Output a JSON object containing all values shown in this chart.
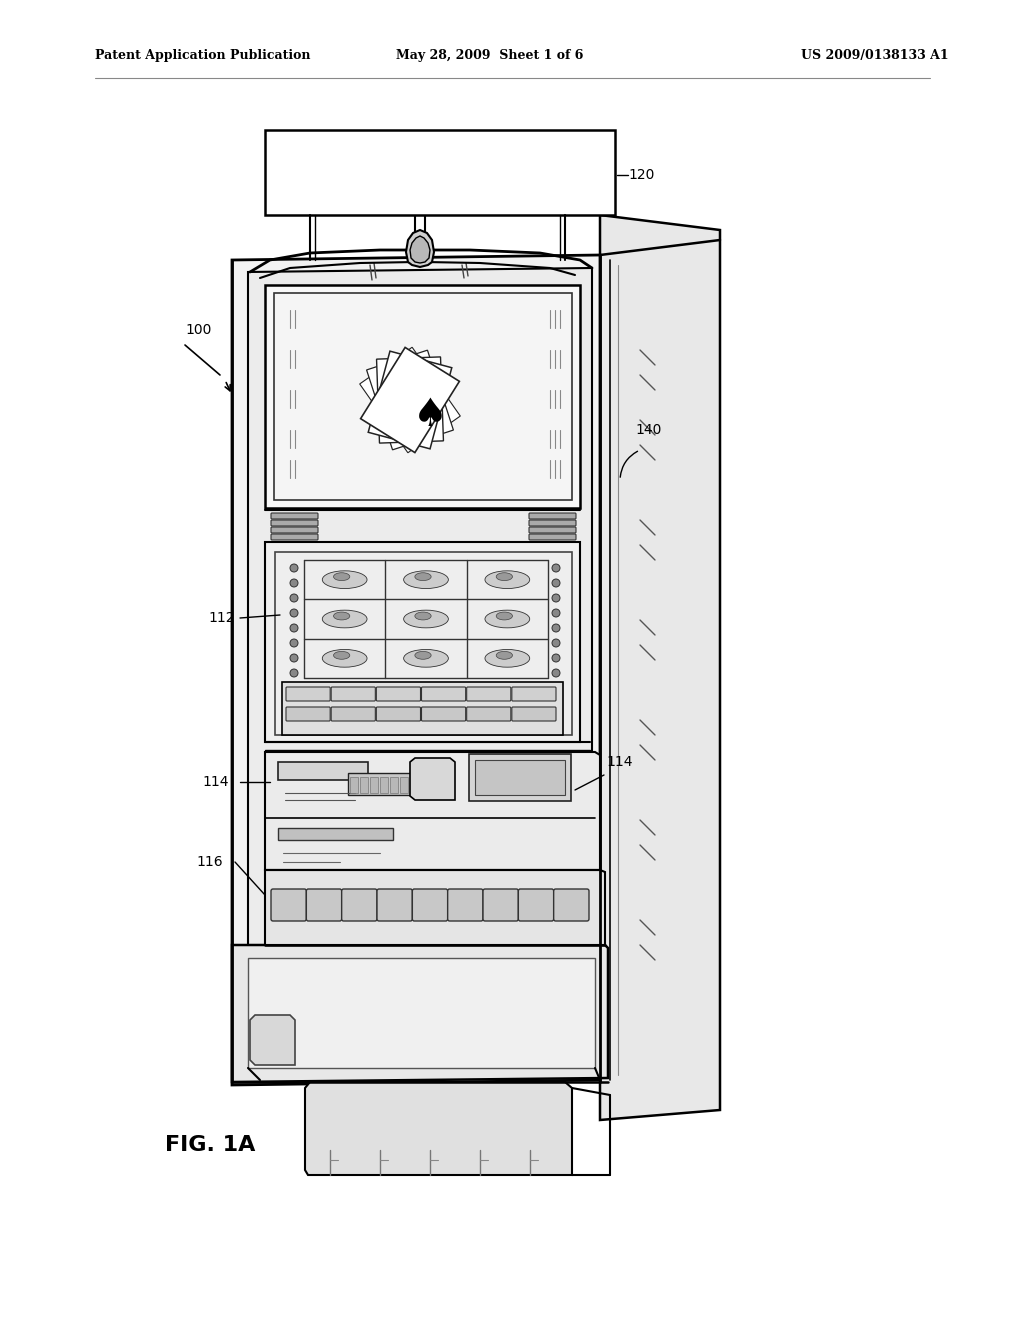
{
  "background_color": "#ffffff",
  "header_left": "Patent Application Publication",
  "header_center": "May 28, 2009  Sheet 1 of 6",
  "header_right": "US 2009/0138133 A1",
  "figure_label": "FIG. 1A",
  "header_fontsize": 9,
  "label_fontsize": 10,
  "fig_label_fontsize": 16
}
